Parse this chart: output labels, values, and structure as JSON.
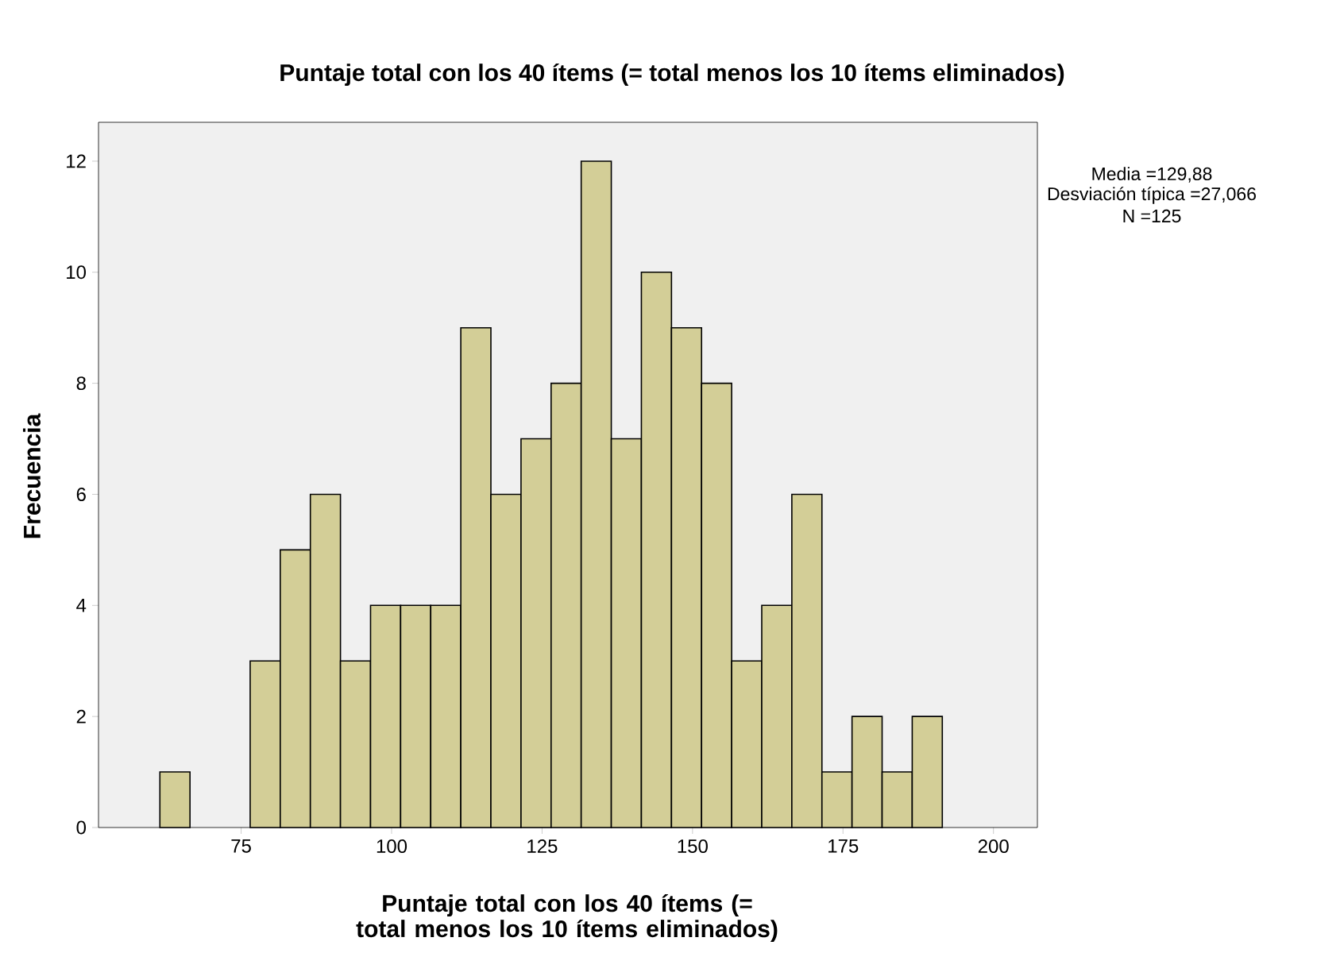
{
  "chart_data": {
    "type": "histogram",
    "title": "Puntaje total con los 40 ítems (= total menos los 10 ítems eliminados)",
    "xlabel": "Puntaje total con los 40 ítems (= total menos los 10 ítems eliminados)",
    "ylabel": "Frecuencia",
    "bins": [
      61.5,
      66.5,
      71.5,
      76.5,
      81.5,
      86.5,
      91.5,
      96.5,
      101.5,
      106.5,
      111.5,
      116.5,
      121.5,
      126.5,
      131.5,
      136.5,
      141.5,
      146.5,
      151.5,
      156.5,
      161.5,
      166.5,
      171.5,
      176.5,
      181.5,
      186.5,
      191.5
    ],
    "values": [
      1,
      0,
      0,
      3,
      5,
      6,
      3,
      4,
      4,
      4,
      9,
      6,
      7,
      8,
      12,
      7,
      10,
      9,
      8,
      3,
      4,
      6,
      1,
      2,
      1,
      2
    ],
    "color": "#d3ce97",
    "xlim": [
      51.3,
      207.3
    ],
    "ylim": [
      0,
      12.7
    ],
    "xticks": [
      75,
      100,
      125,
      150,
      175,
      200
    ],
    "yticks": [
      0,
      2,
      4,
      6,
      8,
      10,
      12
    ],
    "grid": false,
    "annotations": [
      "Media =129,88",
      "Desviación típica =27,066",
      "N =125"
    ]
  }
}
